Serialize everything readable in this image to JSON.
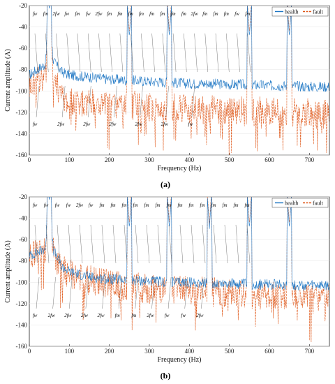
{
  "chart_data": [
    {
      "type": "line",
      "panel_label": "(a)",
      "xlabel": "Frequency (Hz)",
      "ylabel": "Current amplitude (A)",
      "xlim": [
        0,
        750
      ],
      "ylim": [
        -160,
        -20
      ],
      "xticks": [
        0,
        100,
        200,
        300,
        400,
        500,
        600,
        700
      ],
      "yticks": [
        -160,
        -140,
        -120,
        -100,
        -80,
        -60,
        -40,
        -20
      ],
      "legend": {
        "position": "top-right",
        "entries": [
          "health",
          "fault"
        ]
      },
      "series": [
        {
          "name": "health",
          "color": "#1f77c4",
          "style": "solid",
          "x": [
            0,
            20,
            40,
            50,
            60,
            80,
            100,
            150,
            200,
            250,
            300,
            350,
            400,
            450,
            500,
            550,
            600,
            650,
            700,
            750
          ],
          "y": [
            -85,
            -80,
            -75,
            -25,
            -72,
            -82,
            -85,
            -87,
            -89,
            -90,
            -91,
            -92,
            -93,
            -93,
            -94,
            -94,
            -95,
            -95,
            -96,
            -96
          ]
        },
        {
          "name": "fault",
          "color": "#e05a1c",
          "style": "dashed",
          "x": [
            0,
            20,
            40,
            50,
            60,
            80,
            100,
            150,
            200,
            250,
            300,
            350,
            400,
            450,
            500,
            550,
            600,
            650,
            700,
            750
          ],
          "y": [
            -95,
            -90,
            -85,
            -30,
            -85,
            -105,
            -110,
            -112,
            -113,
            -114,
            -115,
            -116,
            -117,
            -118,
            -118,
            -119,
            -119,
            -120,
            -121,
            -122
          ]
        }
      ],
      "peaks": [
        50,
        250,
        350,
        550,
        650
      ],
      "annotations_top": [
        "fw",
        "fm",
        "2fw",
        "fw",
        "fm",
        "fw",
        "2fw",
        "fm",
        "fm",
        "fm",
        "fm",
        "fm",
        "fm",
        "fm",
        "fm",
        "2fw",
        "fm",
        "fm",
        "fm",
        "fw",
        "fm"
      ],
      "annotations_bottom": [
        "fw",
        "2fw",
        "2fw",
        "2fw",
        "2fw",
        "2fw",
        "fw"
      ]
    },
    {
      "type": "line",
      "panel_label": "(b)",
      "xlabel": "Frequency (Hz)",
      "ylabel": "Current amplitude (A)",
      "xlim": [
        0,
        750
      ],
      "ylim": [
        -160,
        -20
      ],
      "xticks": [
        0,
        100,
        200,
        300,
        400,
        500,
        600,
        700
      ],
      "yticks": [
        -160,
        -140,
        -120,
        -100,
        -80,
        -60,
        -40,
        -20
      ],
      "legend": {
        "position": "top-right",
        "entries": [
          "health",
          "fault"
        ]
      },
      "series": [
        {
          "name": "health",
          "color": "#1f77c4",
          "style": "solid",
          "x": [
            0,
            20,
            40,
            50,
            60,
            80,
            100,
            150,
            200,
            250,
            300,
            350,
            400,
            450,
            500,
            550,
            600,
            650,
            700,
            750
          ],
          "y": [
            -75,
            -72,
            -68,
            -22,
            -70,
            -85,
            -90,
            -95,
            -97,
            -98,
            -99,
            -100,
            -100,
            -101,
            -101,
            -102,
            -102,
            -103,
            -103,
            -104
          ]
        },
        {
          "name": "fault",
          "color": "#e05a1c",
          "style": "dashed",
          "x": [
            0,
            20,
            40,
            50,
            60,
            80,
            100,
            150,
            200,
            250,
            300,
            350,
            400,
            450,
            500,
            550,
            600,
            650,
            700,
            750
          ],
          "y": [
            -75,
            -73,
            -70,
            -25,
            -72,
            -88,
            -92,
            -98,
            -102,
            -104,
            -106,
            -107,
            -108,
            -109,
            -110,
            -111,
            -112,
            -113,
            -114,
            -115
          ]
        }
      ],
      "peaks": [
        50,
        250,
        350,
        450,
        550,
        650
      ],
      "annotations_top": [
        "fw",
        "fw",
        "fw",
        "fw",
        "2fw",
        "fw",
        "fm",
        "fm",
        "fm",
        "fm",
        "fm",
        "fm",
        "fm",
        "fm",
        "fm",
        "fm",
        "fm",
        "fm",
        "fm",
        "fm"
      ],
      "annotations_bottom": [
        "fw",
        "2fw",
        "2fw",
        "2fw",
        "2fw",
        "fm",
        "fm",
        "2fw",
        "fw",
        "fw",
        "2fw"
      ]
    }
  ]
}
